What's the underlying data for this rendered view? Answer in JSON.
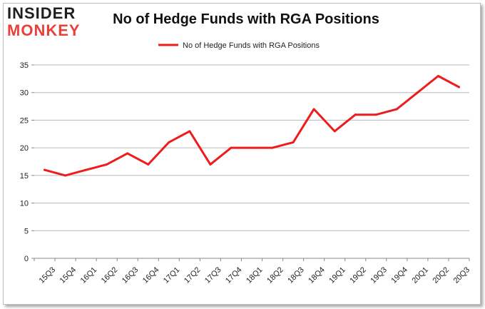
{
  "logo": {
    "top": "INSIDER",
    "bottom": "MONKEY"
  },
  "chart_data": {
    "type": "line",
    "title": "No of Hedge Funds with RGA Positions",
    "xlabel": "",
    "ylabel": "",
    "ylim": [
      0,
      35
    ],
    "yticks": [
      0,
      5,
      10,
      15,
      20,
      25,
      30,
      35
    ],
    "grid": true,
    "legend_position": "top-center",
    "categories": [
      "15Q3",
      "15Q4",
      "16Q1",
      "16Q2",
      "16Q3",
      "16Q4",
      "17Q1",
      "17Q2",
      "17Q3",
      "17Q4",
      "18Q1",
      "18Q2",
      "18Q3",
      "18Q4",
      "19Q1",
      "19Q2",
      "19Q3",
      "19Q4",
      "20Q1",
      "20Q2",
      "20Q3"
    ],
    "series": [
      {
        "name": "No of Hedge Funds with RGA Positions",
        "color": "#ee1c1c",
        "values": [
          16,
          15,
          16,
          17,
          19,
          17,
          21,
          23,
          17,
          20,
          20,
          20,
          21,
          27,
          23,
          26,
          26,
          27,
          30,
          33,
          31
        ]
      }
    ]
  }
}
